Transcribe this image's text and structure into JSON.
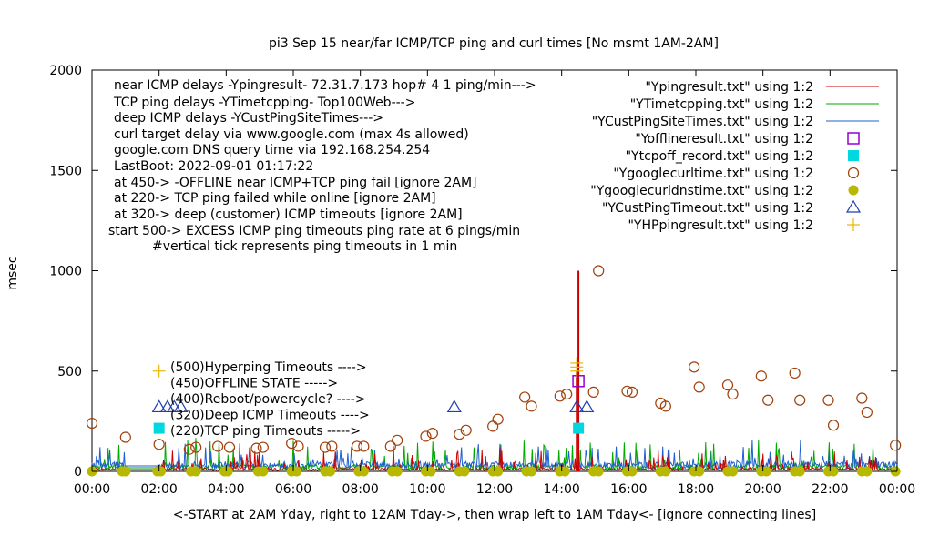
{
  "chart_data": {
    "type": "scatter",
    "title": "pi3 Sep 15  near/far ICMP/TCP ping and curl times [No msmt 1AM-2AM]",
    "xlabel": "<-START at 2AM Yday, right to 12AM Tday->, then wrap left to 1AM Tday<- [ignore connecting lines]",
    "ylabel": "msec",
    "xlim": [
      0,
      24
    ],
    "ylim": [
      0,
      2000
    ],
    "xticks": [
      "00:00",
      "02:00",
      "04:00",
      "06:00",
      "08:00",
      "10:00",
      "12:00",
      "14:00",
      "16:00",
      "18:00",
      "20:00",
      "22:00",
      "00:00"
    ],
    "yticks": [
      "0",
      "500",
      "1000",
      "1500",
      "2000"
    ],
    "info_lines": [
      "near ICMP delays -Ypingresult- 72.31.7.173 hop# 4 1 ping/min--->",
      "TCP ping delays -YTimetcpping- Top100Web--->",
      "deep ICMP delays -YCustPingSiteTimes--->",
      "curl target delay via www.google.com (max 4s allowed)",
      "google.com DNS query time via 192.168.254.254",
      "LastBoot: 2022-09-01 01:17:22",
      "at 450-> -OFFLINE near ICMP+TCP ping fail [ignore 2AM]",
      "at 220-> TCP ping failed while online [ignore 2AM]",
      "at 320-> deep (customer) ICMP timeouts [ignore 2AM]",
      "start 500-> EXCESS ICMP ping timeouts ping rate at 6 pings/min",
      "#vertical tick represents ping timeouts in 1 min"
    ],
    "key_labels": [
      "(500)Hyperping Timeouts ---->",
      "(450)OFFLINE STATE ----->",
      "(400)Reboot/powercycle? ---->",
      "(320)Deep ICMP Timeouts ---->",
      "(220)TCP ping Timeouts ----->"
    ],
    "legend_position": "top-right",
    "series": [
      {
        "name": "\"Ypingresult.txt\" using 1:2",
        "style": "line",
        "color": "#cc0000",
        "spikes": [
          [
            14.5,
            1000
          ],
          [
            14.45,
            500
          ]
        ],
        "baseline": 15
      },
      {
        "name": "\"YTimetcpping.txt\" using 1:2",
        "style": "line",
        "color": "#00aa00",
        "baseline": 30
      },
      {
        "name": "\"YCustPingSiteTimes.txt\" using 1:2",
        "style": "line",
        "color": "#1f5fcf",
        "baseline": 45
      },
      {
        "name": "\"Yofflineresult.txt\" using 1:2",
        "style": "open-square",
        "color": "#9400d3",
        "points": [
          [
            14.5,
            450
          ]
        ]
      },
      {
        "name": "\"Ytcpoff_record.txt\" using 1:2",
        "style": "filled-square",
        "color": "#00d8e0",
        "points": [
          [
            2.0,
            215
          ],
          [
            14.5,
            215
          ]
        ]
      },
      {
        "name": "\"Ygooglecurltime.txt\" using 1:2",
        "style": "open-circle",
        "color": "#a0400a",
        "points": [
          [
            0.0,
            240
          ],
          [
            1.0,
            170
          ],
          [
            2.0,
            135
          ],
          [
            2.9,
            110
          ],
          [
            3.1,
            120
          ],
          [
            3.75,
            125
          ],
          [
            4.1,
            120
          ],
          [
            4.9,
            115
          ],
          [
            5.1,
            120
          ],
          [
            5.95,
            140
          ],
          [
            6.15,
            125
          ],
          [
            6.95,
            120
          ],
          [
            7.15,
            125
          ],
          [
            7.9,
            125
          ],
          [
            8.1,
            125
          ],
          [
            8.9,
            125
          ],
          [
            9.1,
            155
          ],
          [
            9.95,
            175
          ],
          [
            10.15,
            190
          ],
          [
            10.95,
            185
          ],
          [
            11.15,
            205
          ],
          [
            11.95,
            225
          ],
          [
            12.1,
            260
          ],
          [
            12.9,
            370
          ],
          [
            13.1,
            325
          ],
          [
            13.95,
            375
          ],
          [
            14.15,
            385
          ],
          [
            14.95,
            395
          ],
          [
            15.1,
            1000
          ],
          [
            15.95,
            400
          ],
          [
            16.1,
            395
          ],
          [
            16.95,
            340
          ],
          [
            17.1,
            325
          ],
          [
            17.95,
            520
          ],
          [
            18.1,
            420
          ],
          [
            18.95,
            430
          ],
          [
            19.1,
            385
          ],
          [
            19.95,
            475
          ],
          [
            20.15,
            355
          ],
          [
            20.95,
            490
          ],
          [
            21.1,
            355
          ],
          [
            21.95,
            355
          ],
          [
            22.1,
            230
          ],
          [
            22.95,
            365
          ],
          [
            23.1,
            295
          ],
          [
            23.95,
            130
          ]
        ]
      },
      {
        "name": "\"Ygooglecurldnstime.txt\" using 1:2",
        "style": "filled-circle",
        "color": "#b8b800",
        "points_at_y": 0,
        "x": [
          0.0,
          0.9,
          1.0,
          1.95,
          2.05,
          2.95,
          3.1,
          3.95,
          4.05,
          4.95,
          5.1,
          5.95,
          6.1,
          6.95,
          7.1,
          7.95,
          8.1,
          8.95,
          9.1,
          9.95,
          10.1,
          10.95,
          11.1,
          11.95,
          12.1,
          12.95,
          13.1,
          13.95,
          14.1,
          14.95,
          15.1,
          15.95,
          16.1,
          16.95,
          17.1,
          17.95,
          18.1,
          18.95,
          19.1,
          19.95,
          20.1,
          20.95,
          21.1,
          21.95,
          22.1,
          22.95,
          23.1,
          23.95
        ]
      },
      {
        "name": "\"YCustPingTimeout.txt\" using 1:2",
        "style": "open-triangle",
        "color": "#1f3fae",
        "points": [
          [
            2.0,
            320
          ],
          [
            2.25,
            320
          ],
          [
            2.45,
            320
          ],
          [
            2.65,
            320
          ],
          [
            10.8,
            320
          ],
          [
            14.45,
            320
          ],
          [
            14.75,
            320
          ]
        ]
      },
      {
        "name": "\"YHPpingresult.txt\" using 1:2",
        "style": "plus",
        "color": "#f0b400",
        "points": [
          [
            2.0,
            500
          ],
          [
            14.45,
            500
          ],
          [
            14.45,
            520
          ],
          [
            14.45,
            540
          ]
        ]
      }
    ]
  }
}
